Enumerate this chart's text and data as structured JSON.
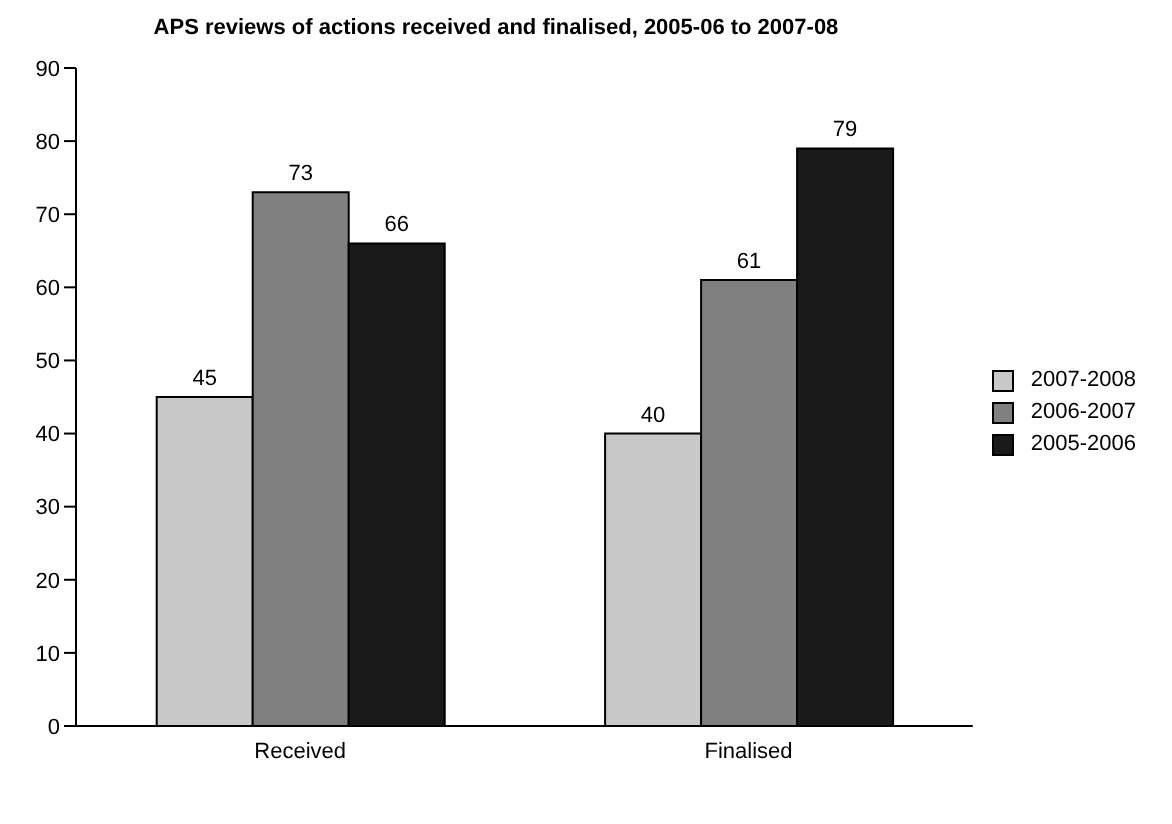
{
  "chart_data": {
    "type": "bar",
    "title": "APS reviews of actions received and finalised, 2005-06 to 2007-08",
    "categories": [
      "Received",
      "Finalised"
    ],
    "series": [
      {
        "name": "2007-2008",
        "color": "#c8c8c8",
        "values": [
          45,
          40
        ]
      },
      {
        "name": "2006-2007",
        "color": "#808080",
        "values": [
          73,
          61
        ]
      },
      {
        "name": "2005-2006",
        "color": "#1a1a1a",
        "values": [
          66,
          79
        ]
      }
    ],
    "ylim": [
      0,
      90
    ],
    "yticks": [
      0,
      10,
      20,
      30,
      40,
      50,
      60,
      70,
      80,
      90
    ],
    "grid": false,
    "legend": "right",
    "data_labels": true
  }
}
